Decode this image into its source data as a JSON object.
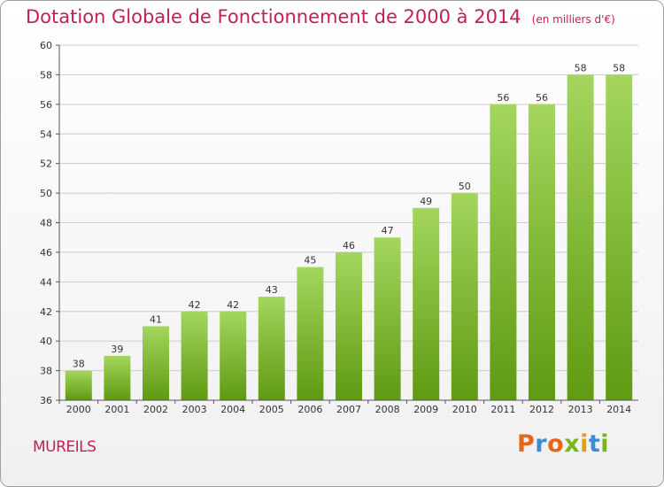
{
  "header": {
    "title": "Dotation Globale de Fonctionnement de 2000 à 2014",
    "subtitle": "(en milliers d'€)"
  },
  "footer": {
    "commune": "MUREILS",
    "logo_text": "Proxiti"
  },
  "colors": {
    "title": "#c41e5a",
    "bar_light": "#a4d65e",
    "bar_dark": "#5f9a12",
    "grid": "#cccccc",
    "axis": "#555555"
  },
  "chart_data": {
    "type": "bar",
    "title": "Dotation Globale de Fonctionnement de 2000 à 2014",
    "subtitle": "(en milliers d'€)",
    "xlabel": "",
    "ylabel": "",
    "categories": [
      "2000",
      "2001",
      "2002",
      "2003",
      "2004",
      "2005",
      "2006",
      "2007",
      "2008",
      "2009",
      "2010",
      "2011",
      "2012",
      "2013",
      "2014"
    ],
    "values": [
      38,
      39,
      41,
      42,
      42,
      43,
      45,
      46,
      47,
      49,
      50,
      56,
      56,
      58,
      58
    ],
    "ylim": [
      36,
      60
    ],
    "yticks": [
      36,
      38,
      40,
      42,
      44,
      46,
      48,
      50,
      52,
      54,
      56,
      58,
      60
    ],
    "grid": true,
    "legend": "none"
  }
}
